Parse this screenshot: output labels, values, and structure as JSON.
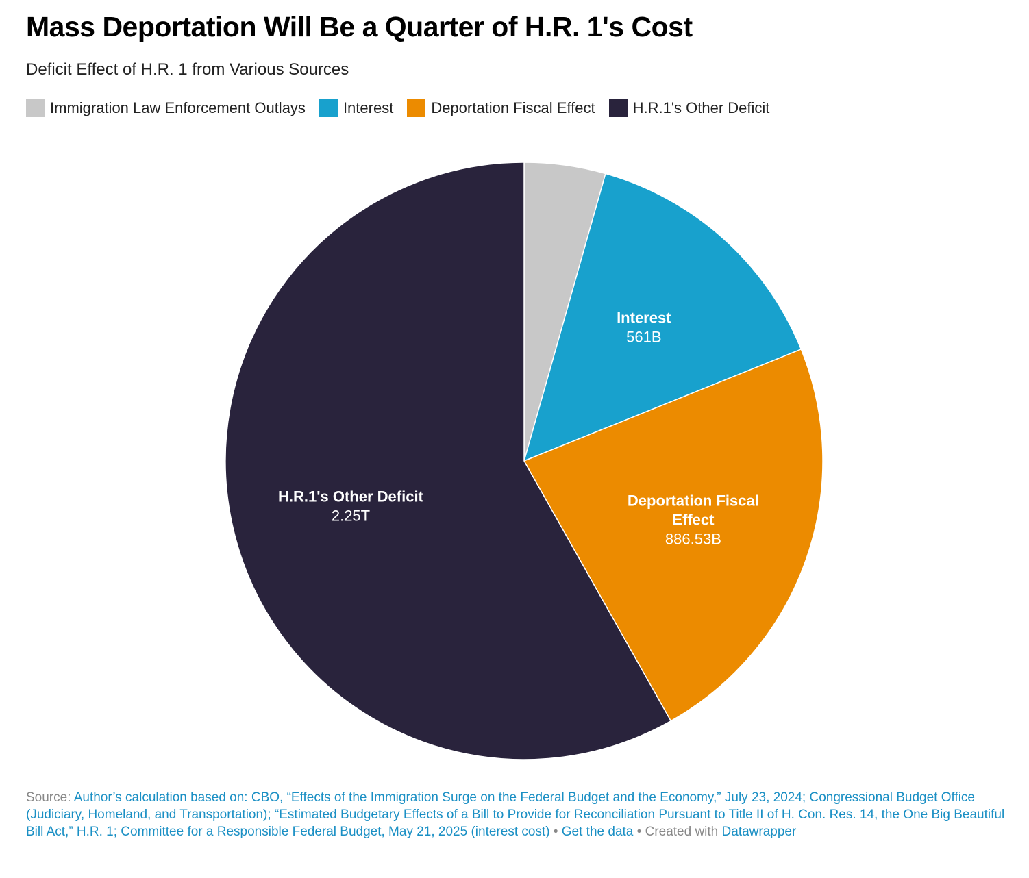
{
  "title": "Mass Deportation Will Be a Quarter of H.R. 1's Cost",
  "subtitle": "Deficit Effect of H.R. 1 from Various Sources",
  "chart_data": {
    "type": "pie",
    "title": "Mass Deportation Will Be a Quarter of H.R. 1's Cost",
    "subtitle": "Deficit Effect of H.R. 1 from Various Sources",
    "legend_placement": "top-left",
    "slices": [
      {
        "name": "Immigration Law Enforcement Outlays",
        "value": 170,
        "value_label": "",
        "label_lines": [],
        "color": "#c8c8c8"
      },
      {
        "name": "Interest",
        "value": 561,
        "value_label": "561B",
        "label_lines": [
          "Interest"
        ],
        "color": "#18a1cd"
      },
      {
        "name": "Deportation Fiscal Effect",
        "value": 886.53,
        "value_label": "886.53B",
        "label_lines": [
          "Deportation Fiscal",
          "Effect"
        ],
        "color": "#ec8b00"
      },
      {
        "name": "H.R.1's Other Deficit",
        "value": 2250,
        "value_label": "2.25T",
        "label_lines": [
          "H.R.1's Other Deficit"
        ],
        "color": "#29233c"
      }
    ]
  },
  "footer": {
    "source_prefix": "Source: ",
    "source_text": "Author’s calculation based on: CBO, “Effects of the Immigration Surge on the Federal Budget and the Economy,” July 23, 2024; Congressional Budget Office (Judiciary, Homeland, and Transportation); “Estimated Budgetary Effects of a Bill to Provide for Reconciliation Pursuant to Title II of H. Con. Res. 14, the One Big Beautiful Bill Act,” H.R. 1; Committee for a Responsible Federal Budget, May 21, 2025 (interest cost)",
    "separator": " • ",
    "get_data": "Get the data",
    "created_with": "Created with",
    "tool": "Datawrapper"
  }
}
